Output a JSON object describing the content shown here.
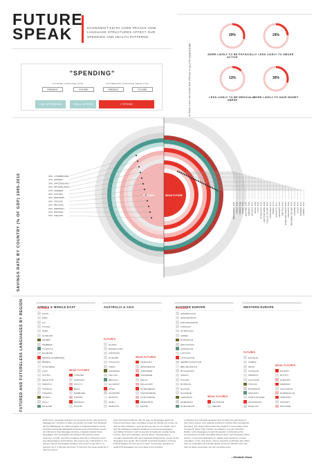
{
  "title_line1": "FUTURE",
  "title_line2": "SPEAK",
  "subtitle": "ECONOMIST KEITH CHEN TRACKS HOW LANGUAGE STRUCTURES AFFECT OUR SPENDING AND HEALTH PATTERNS.",
  "stats_note": "MEASURED by FTR in Europe and Africa are more likely to save money, less likely to smoke, and more likely to be active than FTR cultures",
  "stats": [
    {
      "pct": "29%",
      "value": 29,
      "label": "MORE LIKELY TO BE PHYSICALLY ACTIVE"
    },
    {
      "pct": "24%",
      "value": 24,
      "label": "LESS LIKELY TO SMOKE"
    },
    {
      "pct": "13%",
      "value": 13,
      "label": "LESS LIKELY TO BE MEDICALLY OBESE"
    },
    {
      "pct": "30%",
      "value": 30,
      "label": "MORE LIKELY TO SAVE MONEY"
    }
  ],
  "spending": {
    "word": "\"SPENDING\"",
    "futured_label": "FUTURED LANGUAGE (FTR)",
    "futureless_label": "FUTURELESS LANGUAGE (WEAK FTR)",
    "tags_left": [
      "PRESENT",
      "FUTURE"
    ],
    "tags_right": [
      "PRESENT",
      "FUTURE"
    ],
    "pills": [
      "I AM SPENDING",
      "I WILL SPEND",
      "I SPEND"
    ]
  },
  "colors": {
    "red": "#e63329",
    "teal": "#4a9a8f",
    "pink": "#f2b6b6",
    "olive": "#6b6b2a",
    "grey": "#cfcfcf",
    "lightgrey": "#e9e9e9"
  },
  "chart_data": {
    "type": "radial-bar",
    "title": "SAVINGS RATE BY COUNTRY (% OF GDP) 1985-2010",
    "center_labels": [
      "FUTURED",
      "WEAK FUTURE"
    ],
    "left_countries": [
      "LUXEMBOURG",
      "NORWAY",
      "SWITZERLAND",
      "NETHERLANDS",
      "SWEDEN",
      "AUSTRIA",
      "DENMARK",
      "FINLAND",
      "BELGIUM",
      "GERMANY",
      "ESTONIA",
      "ICELAND"
    ],
    "left_values": [
      43,
      37,
      33,
      29,
      27,
      26,
      25,
      24,
      23,
      22,
      21,
      19
    ],
    "right_countries": [
      "SINGAPORE",
      "CHINA",
      "KOREA",
      "JAPAN",
      "IRELAND",
      "FRANCE",
      "CANADA",
      "SPAIN",
      "ITALY",
      "AUSTRALIA",
      "NEW ZEALAND",
      "UNITED STATES",
      "PORTUGAL",
      "ISRAEL",
      "SLOVAKIA",
      "HUNGARY",
      "POLAND",
      "CZECH REPUBLIC",
      "SLOVENIA",
      "UNITED KINGDOM",
      "MEXICO",
      "CHILE",
      "GREECE",
      "TURKEY"
    ],
    "right_values": [
      49,
      46,
      35,
      30,
      26,
      21,
      21,
      21,
      21,
      21,
      20,
      19,
      17,
      17,
      17,
      16,
      16,
      16,
      16,
      15,
      15,
      15,
      14,
      14
    ]
  },
  "regions_title": "FUTURED AND FUTURELESS LANGUAGES BY REGION",
  "regions": [
    {
      "name": "AFRICA & MIDDLE EAST",
      "futured": [
        "AKAN",
        "EWE",
        "GA",
        "HAUSA",
        "IGBO",
        "KURDISH",
        "ARABIC",
        "HEBREW",
        "TIGRINYA",
        "DAGBANI",
        "TEMNE (KAMBORE)",
        "BEMBA",
        "CHICHEWA",
        "LOZI",
        "SOTHO",
        "SESOTHO",
        "SWAHILI",
        "TSONGA",
        "TSWANA",
        "XHOSA",
        "ZULU",
        "DAGARE"
      ],
      "weak": [
        "YORUBA",
        "AMHARIC",
        "KIKUYU",
        "BEJA",
        "BAMBARA",
        "OROMO",
        "PERSIAN",
        "WOLOF"
      ]
    },
    {
      "name": "AUSTRALIA & ASIA",
      "futured": [
        "ALAWA",
        "BARDALANG",
        "KANNADA",
        "PUNJABI",
        "TAGALOG",
        "TAMIL",
        "KANNADA",
        "TELUGU",
        "BENGALI",
        "GUJARATI",
        "HINDI",
        "KASHMIRI",
        "PASHTO",
        "URDU",
        "MARATHI"
      ],
      "weak": [
        "CEBUANO",
        "INDONESIAN",
        "JAPANESE",
        "JAVANESE",
        "MALAY",
        "MALAGASY",
        "SUNDANESE",
        "VIETNAMESE",
        "CANTONESE",
        "MANDARIN",
        "MAORI"
      ]
    },
    {
      "name": "EASTERN EUROPE",
      "futured": [
        "AZERBAIJANI",
        "MACEDONIAN",
        "MONTENEGRIN",
        "TURKISH",
        "UKRAINIAN",
        "UZBEK",
        "ROMANIAN",
        "MOLDAVIAN",
        "GEORGIAN",
        "LATVIAN",
        "LITHUANIAN",
        "SERBO-CROATIAN",
        "BELORUSSIAN",
        "BULGARIAN",
        "CZECH",
        "POLISH",
        "RUSSIAN",
        "SLOVAK",
        "SLOVENE",
        "ALBANIAN",
        "ARMENIAN",
        "HUNGARIAN"
      ],
      "weak": [
        "ESTONIAN",
        "WENDS"
      ]
    },
    {
      "name": "WESTERN EUROPE",
      "futured": [
        "BASQUE",
        "GREEK",
        "IRISH",
        "CATALAN",
        "FRENCH",
        "GALICIAN",
        "ITALIAN",
        "ROMANSH",
        "SPANISH",
        "PORTUGUESE",
        "AFRIKAANS",
        "ENGLISH"
      ],
      "weak": [
        "DANISH",
        "DUTCH",
        "FLEMISH",
        "GERMAN",
        "ICELANDIC",
        "NORWEGIAN",
        "SWEDISH",
        "FINNISH",
        "MALTESE"
      ]
    }
  ],
  "futures_label": "FUTURES",
  "weak_label": "WEAK FUTURES",
  "footer": [
    "Keith Chen, associate professor of economics at the Yale School of Management, focuses on what economists can learn from linguistic. IN FUTURESpeak, he shared insights on financial patterns across countries that grade distinguish between present and future events; as reflected in their language structure. Linguists classify these languages, such as English, as having a strong future-tense reference, or FTR. And Chen imagines that this is reflected in their spending patterns and behavior. We need to say 'I will spend' or 'I'm going to spend' and English speakers are forced to say 'will' or 'is going to' as in 'it will rain tomorrow.' In German, the same would be 'it rains tomorrow.'",
    "Chen has found evidence that the way our languages depict the present and future often correlates to how we handle our money, as well as other behaviors, such as how we care for our health. Chen and his colleagues analyzed speakers of numerous languages, controlling for factors such as country of residence, marital status, income, race, and education, among others. His goal was to compare households with many identical backgrounds, except for the languages they speak. His research found that speakers of strong FTR languages are less prone to save. Conversely, speakers of weak FTR languages are more likely to put a priority",
    "on lifestyle and spending decisions that prioritize the well-being of their future selves, from quitting smoking to curbing their recreational spending. The single culture that Chen studied is more aware of the concept of 'future' than another, he related in a recent interview. Rather, some languages prompt the speaker to think about the consequences of their immediate actions when communicating future actions, versus procrastinating on making save decisions, a future orientation. In the near future, Chen's research could likely also affect how we understand and predict global economic behavior and may help us better encourage our own everyday ones.",
    "—Elizabeth Wood"
  ]
}
